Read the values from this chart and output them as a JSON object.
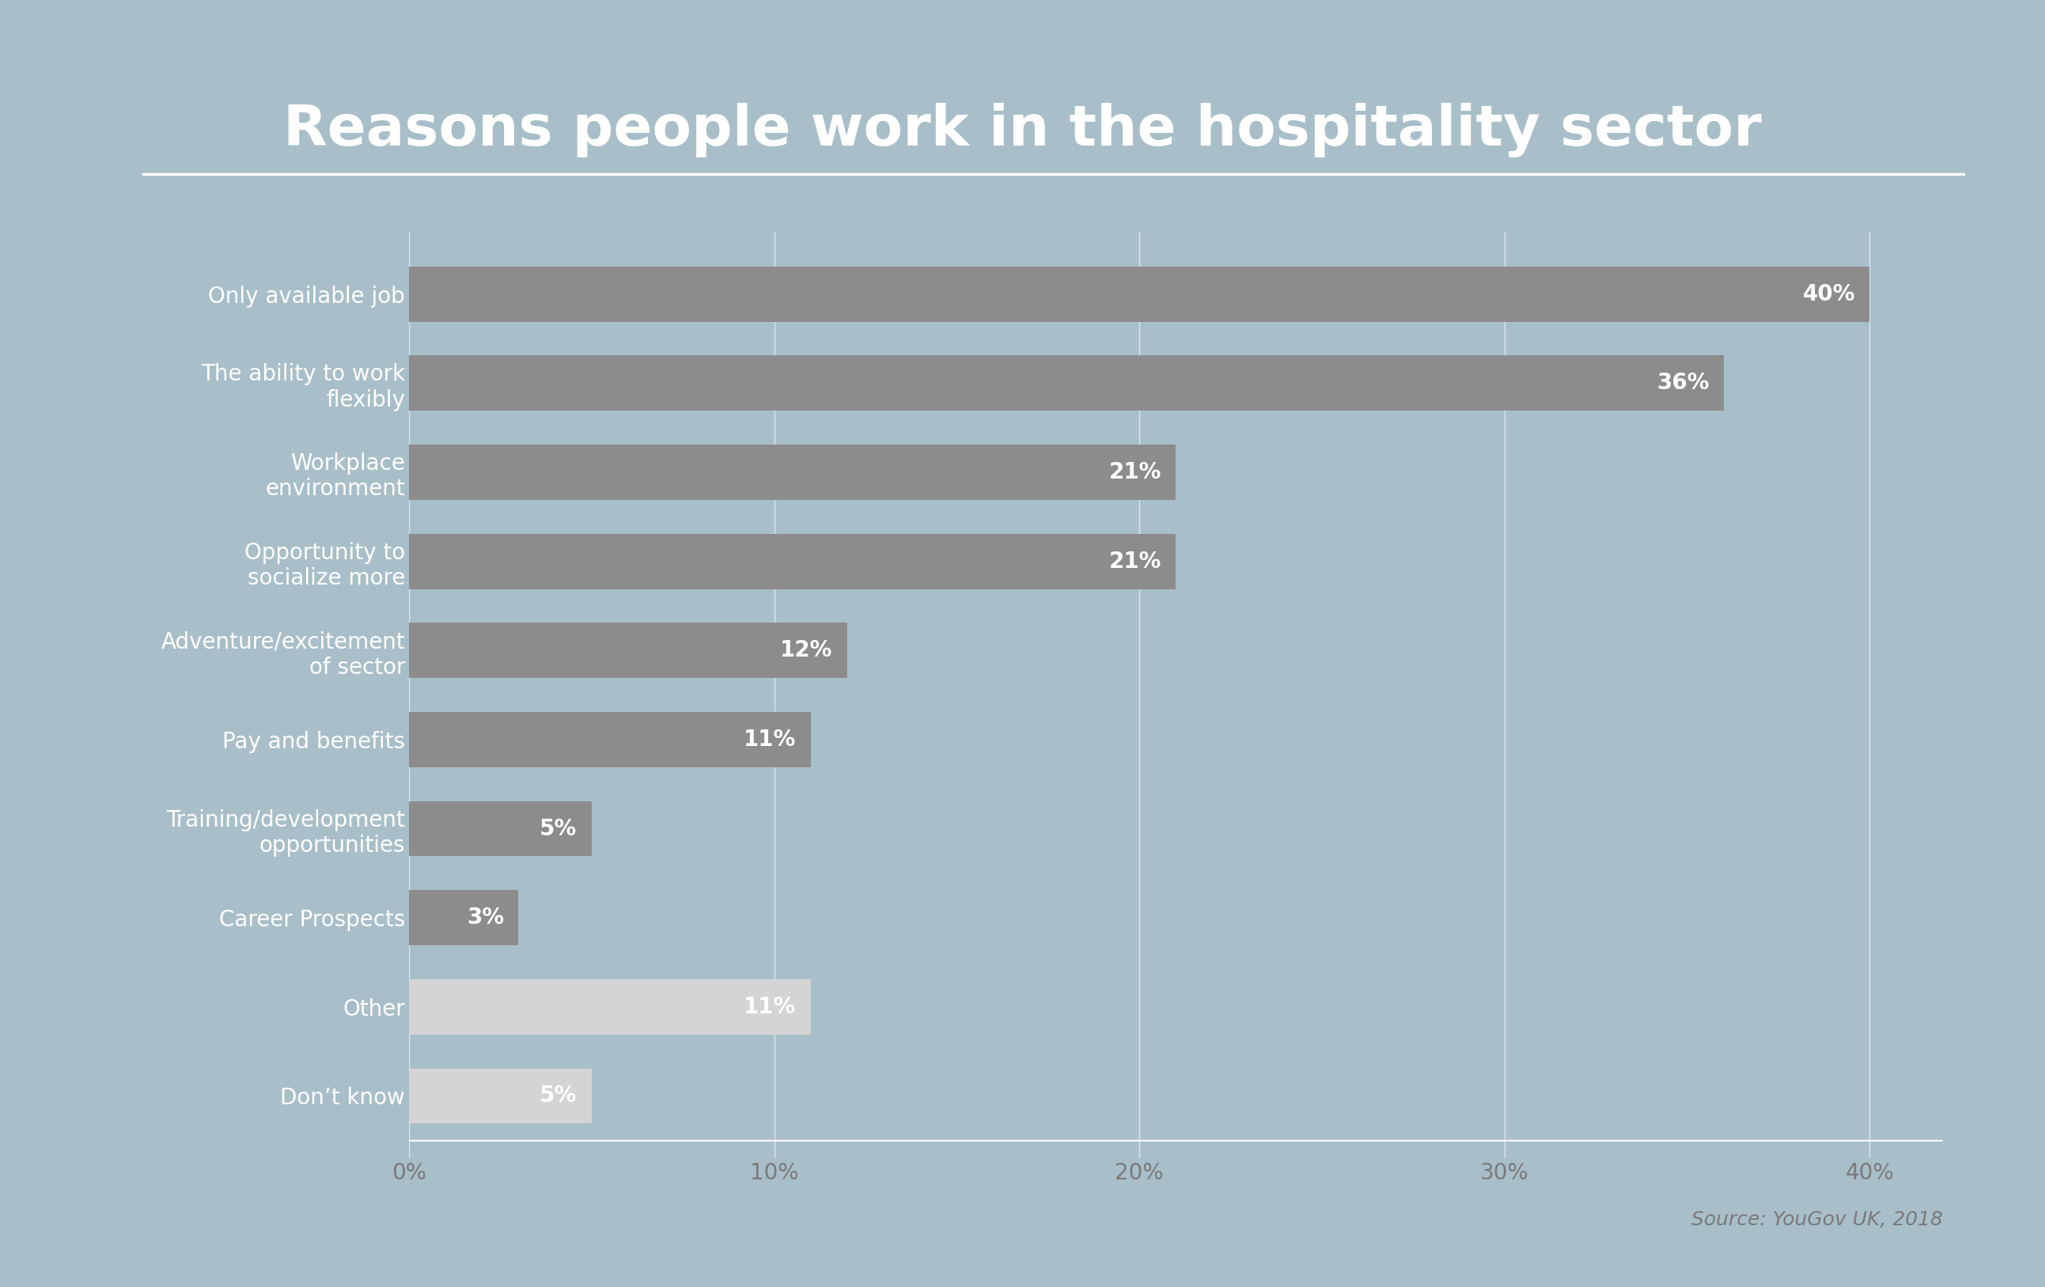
{
  "title": "Reasons people work in the hospitality sector",
  "categories": [
    "Only available job",
    "The ability to work\nflexibly",
    "Workplace\nenvironment",
    "Opportunity to\nsocialize more",
    "Adventure/excitement\nof sector",
    "Pay and benefits",
    "Training/development\nopportunities",
    "Career Prospects",
    "Other",
    "Don’t know"
  ],
  "values": [
    40,
    36,
    21,
    21,
    12,
    11,
    5,
    3,
    11,
    5
  ],
  "bar_colors": [
    "#8c8c8c",
    "#8c8c8c",
    "#8c8c8c",
    "#8c8c8c",
    "#8c8c8c",
    "#8c8c8c",
    "#8c8c8c",
    "#8c8c8c",
    "#d4d4d4",
    "#d4d4d4"
  ],
  "background_color": "#a8bfc9",
  "title_color": "#ffffff",
  "label_color": "#ffffff",
  "value_label_color": "#ffffff",
  "axis_label_color": "#7a7a7a",
  "source_text": "Source: YouGov UK, 2018",
  "xlim": [
    0,
    42
  ],
  "xticks": [
    0,
    10,
    20,
    30,
    40
  ],
  "xtick_labels": [
    "0%",
    "10%",
    "20%",
    "30%",
    "40%"
  ],
  "title_fontsize": 52,
  "bar_label_fontsize": 20,
  "value_fontsize": 20,
  "tick_fontsize": 20,
  "source_fontsize": 18
}
